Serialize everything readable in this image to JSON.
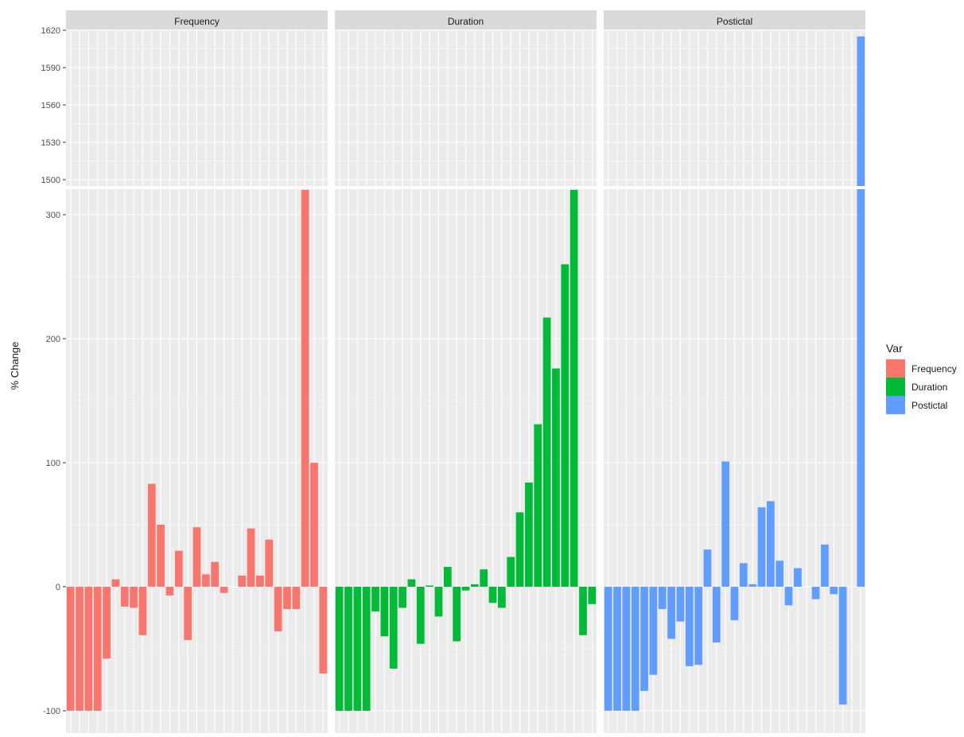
{
  "chart_data": {
    "type": "bar",
    "ylabel": "% Change",
    "xlabel": "",
    "facets": [
      "Frequency",
      "Duration",
      "Postictal"
    ],
    "y_axis_break": {
      "upper_segment": {
        "ylim": [
          1495,
          1620
        ],
        "ticks": [
          1500,
          1530,
          1560,
          1590,
          1620
        ]
      },
      "lower_segment": {
        "ylim": [
          -100,
          320
        ],
        "ticks": [
          -100,
          0,
          100,
          200,
          300
        ]
      }
    },
    "legend": {
      "title": "Var",
      "position": "right",
      "entries": [
        "Frequency",
        "Duration",
        "Postictal"
      ]
    },
    "colors": {
      "Frequency": "#F8766D",
      "Duration": "#00BA38",
      "Postictal": "#619CFF",
      "panel_background": "#EBEBEB",
      "strip_background": "#D9D9D9",
      "grid": "#FFFFFF"
    },
    "grid": true,
    "series": [
      {
        "name": "Frequency",
        "values": [
          -100,
          -100,
          -100,
          -100,
          -58,
          6,
          -16,
          -17,
          -39,
          83,
          50,
          -7,
          29,
          -43,
          48,
          10,
          20,
          -5,
          0,
          9,
          47,
          9,
          38,
          -36,
          -18,
          -18,
          320,
          100,
          -70
        ]
      },
      {
        "name": "Duration",
        "values": [
          -100,
          -100,
          -100,
          -100,
          -20,
          -40,
          -66,
          -17,
          6,
          -46,
          1,
          -24,
          16,
          -44,
          -3,
          2,
          14,
          -13,
          -17,
          24,
          60,
          84,
          131,
          217,
          176,
          260,
          320,
          -39,
          -14
        ]
      },
      {
        "name": "Postictal",
        "values": [
          -100,
          -100,
          -100,
          -100,
          -84,
          -71,
          -18,
          -42,
          -28,
          -64,
          -63,
          30,
          -45,
          101,
          -27,
          19,
          2,
          64,
          69,
          21,
          -15,
          15,
          0,
          -10,
          34,
          -6,
          -95,
          0,
          1615
        ]
      }
    ]
  }
}
